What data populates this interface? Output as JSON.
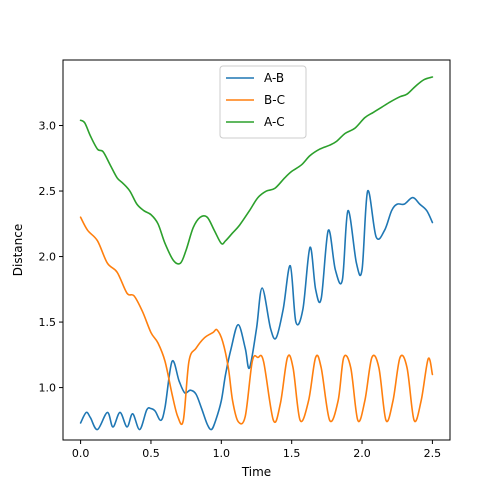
{
  "chart_data": {
    "type": "line",
    "title": "",
    "xlabel": "Time",
    "ylabel": "Distance",
    "xlim": [
      -0.125,
      2.625
    ],
    "ylim": [
      0.6,
      3.5
    ],
    "xticks": [
      0.0,
      0.5,
      1.0,
      1.5,
      2.0,
      2.5
    ],
    "xtick_labels": [
      "0.0",
      "0.5",
      "1.0",
      "1.5",
      "2.0",
      "2.5"
    ],
    "yticks": [
      1.0,
      1.5,
      2.0,
      2.5,
      3.0
    ],
    "ytick_labels": [
      "1.0",
      "1.5",
      "2.0",
      "2.5",
      "3.0"
    ],
    "grid": false,
    "legend_position": "top-center",
    "series": [
      {
        "name": "A-B",
        "color": "#1f77b4",
        "x": [
          0.0,
          0.04,
          0.07,
          0.12,
          0.19,
          0.23,
          0.28,
          0.33,
          0.37,
          0.42,
          0.47,
          0.5,
          0.53,
          0.57,
          0.6,
          0.65,
          0.7,
          0.74,
          0.78,
          0.82,
          0.86,
          0.9,
          0.93,
          0.96,
          1.0,
          1.03,
          1.07,
          1.12,
          1.17,
          1.2,
          1.25,
          1.29,
          1.35,
          1.39,
          1.44,
          1.49,
          1.53,
          1.58,
          1.63,
          1.67,
          1.71,
          1.76,
          1.81,
          1.86,
          1.9,
          1.96,
          2.0,
          2.04,
          2.1,
          2.16,
          2.21,
          2.25,
          2.3,
          2.36,
          2.41,
          2.46,
          2.5
        ],
        "y": [
          0.73,
          0.81,
          0.77,
          0.68,
          0.81,
          0.7,
          0.81,
          0.7,
          0.8,
          0.68,
          0.83,
          0.84,
          0.82,
          0.75,
          0.85,
          1.2,
          1.05,
          0.96,
          0.98,
          0.95,
          0.84,
          0.72,
          0.68,
          0.75,
          0.9,
          1.1,
          1.3,
          1.48,
          1.3,
          1.15,
          1.45,
          1.76,
          1.45,
          1.38,
          1.6,
          1.93,
          1.5,
          1.6,
          2.07,
          1.75,
          1.68,
          2.2,
          1.9,
          1.82,
          2.35,
          1.95,
          1.9,
          2.5,
          2.15,
          2.2,
          2.35,
          2.4,
          2.4,
          2.45,
          2.4,
          2.35,
          2.26
        ]
      },
      {
        "name": "B-C",
        "color": "#ff7f0e",
        "x": [
          0.0,
          0.05,
          0.12,
          0.19,
          0.26,
          0.33,
          0.38,
          0.44,
          0.5,
          0.55,
          0.6,
          0.65,
          0.69,
          0.73,
          0.77,
          0.82,
          0.88,
          0.94,
          0.97,
          1.01,
          1.05,
          1.08,
          1.12,
          1.17,
          1.22,
          1.26,
          1.3,
          1.37,
          1.42,
          1.47,
          1.51,
          1.56,
          1.62,
          1.67,
          1.71,
          1.77,
          1.83,
          1.87,
          1.92,
          1.97,
          2.02,
          2.07,
          2.12,
          2.17,
          2.22,
          2.27,
          2.32,
          2.37,
          2.42,
          2.47,
          2.5
        ],
        "y": [
          2.3,
          2.2,
          2.12,
          1.95,
          1.88,
          1.72,
          1.7,
          1.58,
          1.42,
          1.34,
          1.2,
          0.95,
          0.78,
          0.75,
          1.2,
          1.3,
          1.38,
          1.42,
          1.44,
          1.35,
          1.15,
          0.9,
          0.74,
          0.78,
          1.2,
          1.23,
          1.2,
          0.75,
          0.88,
          1.23,
          1.15,
          0.75,
          0.9,
          1.23,
          1.15,
          0.75,
          0.9,
          1.23,
          1.15,
          0.75,
          0.9,
          1.23,
          1.15,
          0.75,
          0.9,
          1.23,
          1.15,
          0.75,
          0.9,
          1.22,
          1.1
        ]
      },
      {
        "name": "A-C",
        "color": "#2ca02c",
        "x": [
          0.0,
          0.03,
          0.07,
          0.12,
          0.16,
          0.21,
          0.26,
          0.3,
          0.35,
          0.4,
          0.45,
          0.5,
          0.55,
          0.6,
          0.66,
          0.71,
          0.75,
          0.8,
          0.85,
          0.9,
          0.95,
          1.0,
          1.03,
          1.08,
          1.13,
          1.2,
          1.26,
          1.32,
          1.38,
          1.45,
          1.5,
          1.57,
          1.63,
          1.7,
          1.77,
          1.82,
          1.88,
          1.95,
          2.02,
          2.08,
          2.14,
          2.2,
          2.27,
          2.32,
          2.38,
          2.44,
          2.5
        ],
        "y": [
          3.04,
          3.02,
          2.92,
          2.82,
          2.8,
          2.7,
          2.6,
          2.56,
          2.5,
          2.4,
          2.35,
          2.32,
          2.25,
          2.1,
          1.97,
          1.95,
          2.05,
          2.22,
          2.3,
          2.3,
          2.2,
          2.1,
          2.12,
          2.18,
          2.24,
          2.35,
          2.45,
          2.5,
          2.52,
          2.6,
          2.65,
          2.7,
          2.77,
          2.82,
          2.85,
          2.88,
          2.94,
          2.98,
          3.06,
          3.1,
          3.14,
          3.18,
          3.22,
          3.24,
          3.3,
          3.35,
          3.37
        ]
      }
    ]
  }
}
